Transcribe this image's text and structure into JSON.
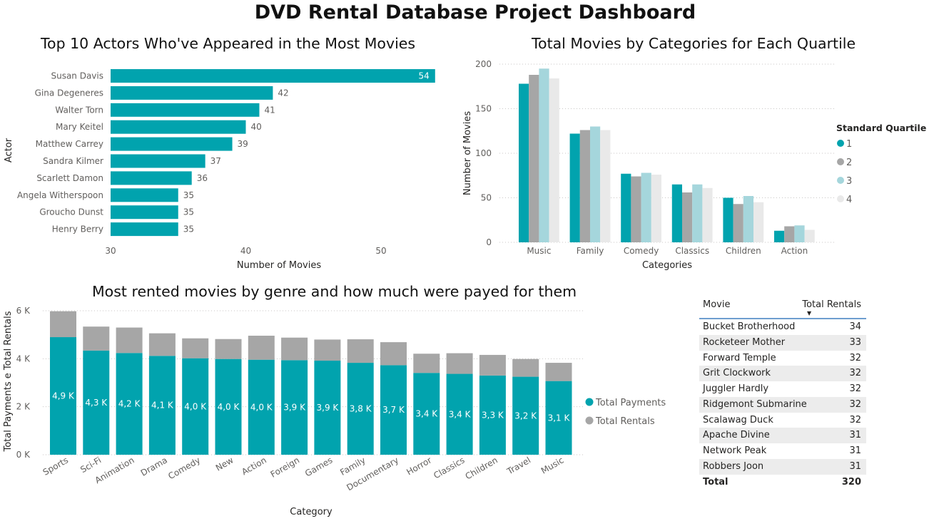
{
  "dashboard": {
    "title": "DVD Rental Database Project Dashboard"
  },
  "chart_data": [
    {
      "type": "bar",
      "orientation": "horizontal",
      "title": "Top 10 Actors Who've Appeared in the Most Movies",
      "xlabel": "Number of Movies",
      "ylabel": "Actor",
      "categories": [
        "Susan Davis",
        "Gina Degeneres",
        "Walter Torn",
        "Mary Keitel",
        "Matthew Carrey",
        "Sandra Kilmer",
        "Scarlett Damon",
        "Angela Witherspoon",
        "Groucho Dunst",
        "Henry Berry"
      ],
      "values": [
        54,
        42,
        41,
        40,
        39,
        37,
        36,
        35,
        35,
        35
      ],
      "xlim": [
        30,
        54
      ],
      "xticks": [
        30,
        40,
        50
      ],
      "color": "#01a3ae"
    },
    {
      "type": "bar",
      "title": "Total Movies by Categories for Each Quartile",
      "xlabel": "Categories",
      "ylabel": "Number of Movies",
      "categories": [
        "Music",
        "Family",
        "Comedy",
        "Classics",
        "Children",
        "Action"
      ],
      "ylim": [
        0,
        200
      ],
      "yticks": [
        0,
        50,
        100,
        150,
        200
      ],
      "legend_title": "Standard Quartile",
      "legend_position": "right",
      "grid": true,
      "series": [
        {
          "name": "1",
          "color": "#01a3ae",
          "values": [
            178,
            122,
            77,
            65,
            50,
            13
          ]
        },
        {
          "name": "2",
          "color": "#a6a6a6",
          "values": [
            188,
            126,
            74,
            56,
            43,
            18
          ]
        },
        {
          "name": "3",
          "color": "#a5d6dc",
          "values": [
            195,
            130,
            78,
            65,
            52,
            19
          ]
        },
        {
          "name": "4",
          "color": "#e9e9e9",
          "values": [
            184,
            126,
            76,
            61,
            45,
            14
          ]
        }
      ]
    },
    {
      "type": "bar",
      "stacked": true,
      "title": "Most rented movies by genre and how much were payed for them",
      "xlabel": "Category",
      "ylabel": "Total Payments e Total Rentals",
      "categories": [
        "Sports",
        "Sci-Fi",
        "Animation",
        "Drama",
        "Comedy",
        "New",
        "Action",
        "Foreign",
        "Games",
        "Family",
        "Documentary",
        "Horror",
        "Classics",
        "Children",
        "Travel",
        "Music"
      ],
      "ylim": [
        0,
        6000
      ],
      "yticks": [
        0,
        2000,
        4000,
        6000
      ],
      "ytick_labels": [
        "0 K",
        "2 K",
        "4 K",
        "6 K"
      ],
      "legend_position": "right",
      "grid": true,
      "series": [
        {
          "name": "Total Payments",
          "color": "#01a3ae",
          "values": [
            4900,
            4340,
            4240,
            4120,
            4020,
            3990,
            3960,
            3940,
            3920,
            3830,
            3730,
            3410,
            3370,
            3300,
            3250,
            3070
          ],
          "labels": [
            "4,9 K",
            "4,3 K",
            "4,2 K",
            "4,1 K",
            "4,0 K",
            "4,0 K",
            "4,0 K",
            "3,9 K",
            "3,9 K",
            "3,8 K",
            "3,7 K",
            "3,4 K",
            "3,4 K",
            "3,3 K",
            "3,2 K",
            "3,1 K"
          ]
        },
        {
          "name": "Total Rentals",
          "color": "#a6a6a6",
          "values": [
            1080,
            1000,
            1060,
            940,
            830,
            830,
            1000,
            940,
            880,
            980,
            960,
            800,
            860,
            860,
            740,
            760
          ]
        }
      ]
    }
  ],
  "table": {
    "headers": {
      "movie": "Movie",
      "total": "Total Rentals"
    },
    "rows": [
      {
        "movie": "Bucket Brotherhood",
        "total": "34"
      },
      {
        "movie": "Rocketeer Mother",
        "total": "33"
      },
      {
        "movie": "Forward Temple",
        "total": "32"
      },
      {
        "movie": "Grit Clockwork",
        "total": "32"
      },
      {
        "movie": "Juggler Hardly",
        "total": "32"
      },
      {
        "movie": "Ridgemont Submarine",
        "total": "32"
      },
      {
        "movie": "Scalawag Duck",
        "total": "32"
      },
      {
        "movie": "Apache Divine",
        "total": "31"
      },
      {
        "movie": "Network Peak",
        "total": "31"
      },
      {
        "movie": "Robbers Joon",
        "total": "31"
      }
    ],
    "total_label": "Total",
    "total_value": "320"
  }
}
